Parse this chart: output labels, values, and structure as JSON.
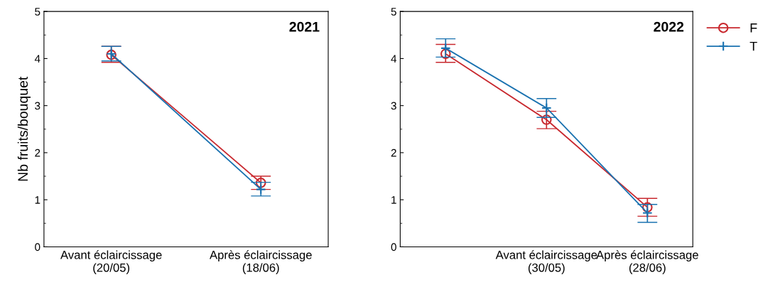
{
  "chart_data": [
    {
      "type": "line",
      "title": "2021",
      "ylabel": "Nb fruits/bouquet",
      "categories": [
        "Avant éclaircissage\n(20/05)",
        "Après éclaircissage\n(18/06)"
      ],
      "ylim": [
        0,
        5
      ],
      "yticks": [
        0,
        1,
        2,
        3,
        4,
        5
      ],
      "legend": false,
      "series": [
        {
          "color": "#c8282e",
          "marker": "circle",
          "values": [
            4.08,
            1.36
          ],
          "errors": [
            [
              3.92,
              4.26
            ],
            [
              1.22,
              1.5
            ]
          ]
        },
        {
          "color": "#1a72b0",
          "marker": "cross",
          "values": [
            4.1,
            1.22
          ],
          "errors": [
            [
              3.95,
              4.26
            ],
            [
              1.08,
              1.37
            ]
          ]
        }
      ]
    },
    {
      "type": "line",
      "title": "2022",
      "categories": [
        null,
        "Avant éclaircissage\n(30/05)",
        "Après éclaircissage\n(28/06)"
      ],
      "ylim": [
        0,
        5
      ],
      "yticks": [
        0,
        1,
        2,
        3,
        4,
        5
      ],
      "legend": "top right",
      "series": [
        {
          "name": "F",
          "color": "#c8282e",
          "marker": "circle",
          "values": [
            4.1,
            2.7,
            0.84
          ],
          "errors": [
            [
              3.92,
              4.3
            ],
            [
              2.51,
              2.88
            ],
            [
              0.65,
              1.03
            ]
          ]
        },
        {
          "name": "T",
          "color": "#1a72b0",
          "marker": "cross",
          "values": [
            4.22,
            2.95,
            0.72
          ],
          "errors": [
            [
              4.03,
              4.42
            ],
            [
              2.75,
              3.15
            ],
            [
              0.52,
              0.9
            ]
          ]
        }
      ]
    }
  ]
}
